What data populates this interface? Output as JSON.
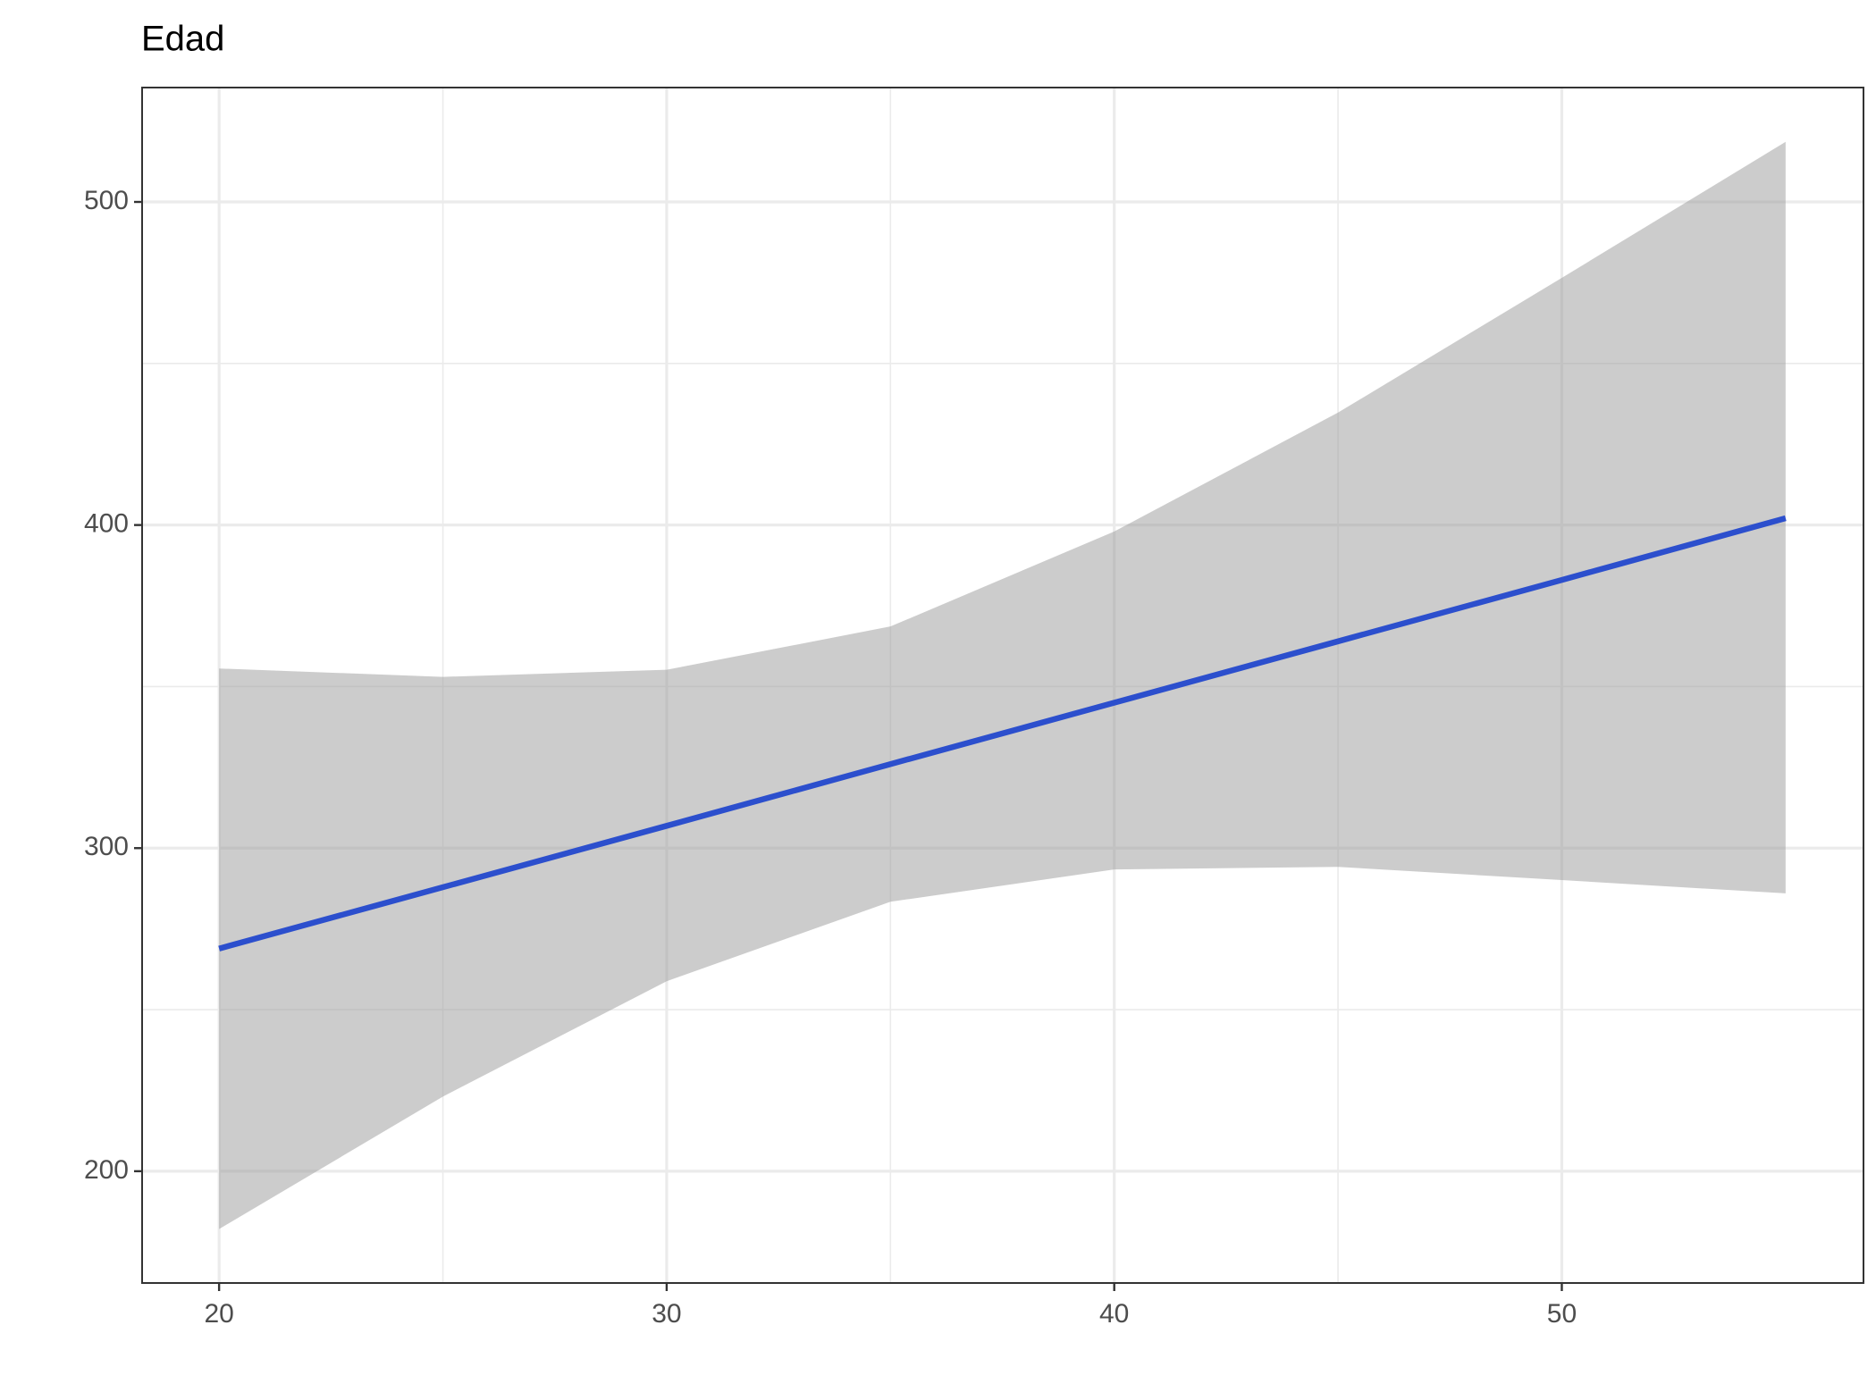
{
  "chart_data": {
    "type": "line",
    "title": "Edad",
    "x": [
      20,
      25,
      30,
      35,
      40,
      45,
      50,
      55
    ],
    "values": [
      268.9,
      287.9,
      306.9,
      326.0,
      345.0,
      364.0,
      383.0,
      402.1
    ],
    "upper": [
      355.6,
      353.0,
      355.2,
      368.6,
      398.0,
      434.8,
      476.5,
      518.6
    ],
    "lower": [
      182.1,
      223.1,
      258.8,
      283.4,
      293.4,
      294.2,
      290.1,
      286.0
    ],
    "color": "#2c4fcd",
    "band_color": "#999999",
    "xlim": [
      18.28,
      56.74
    ],
    "ylim": [
      165.4,
      535.4
    ],
    "xticks": [
      20,
      30,
      40,
      50
    ],
    "yticks": [
      200,
      300,
      400,
      500
    ],
    "x_minor_ticks": [
      25,
      35,
      45
    ],
    "y_minor_ticks": [
      250,
      350,
      450
    ],
    "grid": true
  }
}
